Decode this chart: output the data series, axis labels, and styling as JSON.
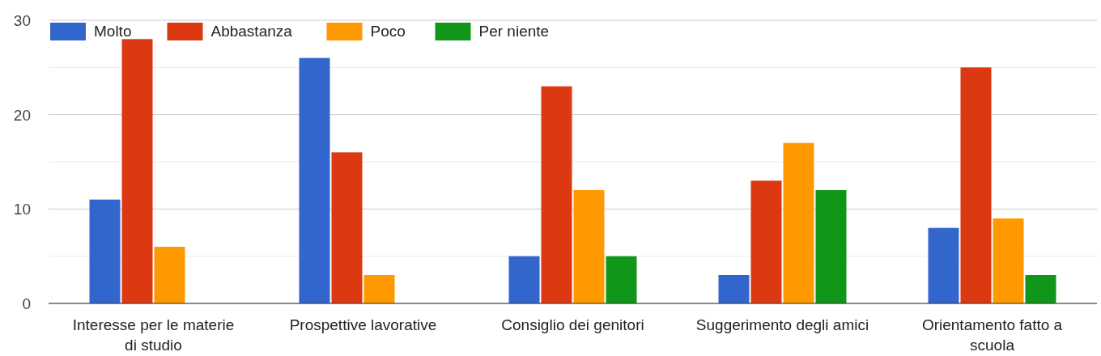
{
  "chart_data": {
    "type": "bar",
    "categories": [
      "Interesse per le materie di studio",
      "Prospettive lavorative",
      "Consiglio dei genitori",
      "Suggerimento degli amici",
      "Orientamento fatto a scuola"
    ],
    "series": [
      {
        "name": "Molto",
        "color": "#3366cc",
        "values": [
          11,
          26,
          5,
          3,
          8
        ]
      },
      {
        "name": "Abbastanza",
        "color": "#dc3912",
        "values": [
          28,
          16,
          23,
          13,
          25
        ]
      },
      {
        "name": "Poco",
        "color": "#ff9900",
        "values": [
          6,
          3,
          12,
          17,
          9
        ]
      },
      {
        "name": "Per niente",
        "color": "#109618",
        "values": [
          0,
          0,
          5,
          12,
          3
        ]
      }
    ],
    "ylim": [
      0,
      30
    ],
    "yticks": [
      0,
      {
        "value": 5,
        "label": null
      },
      10,
      {
        "value": 15,
        "label": null
      },
      20,
      {
        "value": 25,
        "label": null
      },
      30
    ],
    "grid": "y",
    "legend": "top left"
  }
}
